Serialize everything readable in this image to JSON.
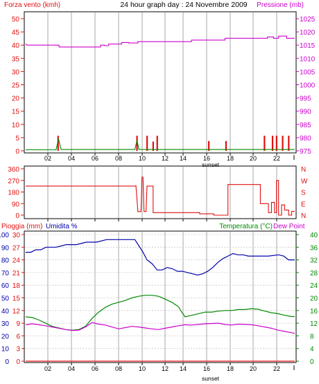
{
  "colors": {
    "red": "#e01010",
    "magenta": "#cc00cc",
    "green": "#008800",
    "blue": "#0000aa",
    "black": "#000000",
    "grid": "#c8c8c8"
  },
  "chart_data": [
    {
      "type": "line",
      "title": "24 hour graph day : 24 Novembre 2009",
      "left_label": "Forza vento (kmh)",
      "right_label": "Pressione (mb)",
      "x_tick_labels": [
        "02",
        "04",
        "06",
        "08",
        "10",
        "12",
        "14",
        "16",
        "18",
        "20",
        "22"
      ],
      "x_marker": "sunset",
      "y_left_ticks": [
        "0",
        "5",
        "10",
        "15",
        "20",
        "25",
        "30",
        "35",
        "40",
        "45",
        "50"
      ],
      "y_right_ticks": [
        "975",
        "980",
        "985",
        "990",
        "995",
        "1000",
        "1005",
        "1010",
        "1015",
        "1020",
        "1025"
      ],
      "ylim_left": [
        0,
        50
      ],
      "series": [
        {
          "axis": "right",
          "color": "magenta",
          "points": [
            [
              0,
              1015.5
            ],
            [
              0.1,
              1015
            ],
            [
              3.3,
              1015
            ],
            [
              3.3,
              1014.3
            ],
            [
              7.4,
              1014.3
            ],
            [
              7.4,
              1015
            ],
            [
              7.8,
              1015
            ],
            [
              7.8,
              1014.8
            ],
            [
              8.2,
              1014.8
            ],
            [
              8.2,
              1015.4
            ],
            [
              9.5,
              1015.4
            ],
            [
              9.5,
              1016
            ],
            [
              10.2,
              1016
            ],
            [
              10.2,
              1015.8
            ],
            [
              11.1,
              1015.8
            ],
            [
              11.1,
              1016.3
            ],
            [
              16.4,
              1016.3
            ],
            [
              16.4,
              1016.9
            ],
            [
              19.7,
              1016.9
            ],
            [
              19.7,
              1017.6
            ],
            [
              23.9,
              1017.6
            ],
            [
              23.9,
              1018.1
            ],
            [
              24.5,
              1018.1
            ],
            [
              24.5,
              1017.6
            ],
            [
              25,
              1017.6
            ],
            [
              25,
              1018.4
            ],
            [
              25.8,
              1018.4
            ],
            [
              25.8,
              1017.6
            ],
            [
              26.6,
              1017.6
            ]
          ]
        },
        {
          "axis": "left",
          "color": "green",
          "points": [
            [
              0,
              0.4
            ],
            [
              3,
              0.4
            ],
            [
              3.25,
              4.5
            ],
            [
              3.5,
              0.5
            ],
            [
              10.8,
              0.5
            ],
            [
              11,
              4
            ],
            [
              11.2,
              0.5
            ],
            [
              26.6,
              0.5
            ]
          ]
        }
      ],
      "bars": {
        "color": "red",
        "values": [
          [
            3.2,
            5.7
          ],
          [
            11.0,
            5.7
          ],
          [
            12.0,
            5.7
          ],
          [
            12.6,
            3.5
          ],
          [
            13.0,
            5.7
          ],
          [
            18.1,
            3.7
          ],
          [
            19.8,
            3.7
          ],
          [
            23.6,
            5.7
          ],
          [
            24.4,
            5.7
          ],
          [
            24.8,
            5.7
          ],
          [
            25.4,
            5.7
          ],
          [
            26.0,
            5.7
          ]
        ]
      }
    },
    {
      "type": "line",
      "y_left_ticks": [
        "360",
        "270",
        "180",
        "90",
        "0"
      ],
      "y_right_ticks": [
        "N",
        "W",
        "S",
        "E",
        "N"
      ],
      "ylim_left": [
        0,
        360
      ],
      "series": [
        {
          "color": "red",
          "points": [
            [
              0,
              226
            ],
            [
              10.8,
              226
            ],
            [
              10.9,
              229
            ],
            [
              11.1,
              28
            ],
            [
              11.4,
              28
            ],
            [
              11.5,
              295
            ],
            [
              11.6,
              295
            ],
            [
              11.7,
              28
            ],
            [
              11.9,
              28
            ],
            [
              12.0,
              226
            ],
            [
              12.6,
              226
            ],
            [
              12.6,
              20
            ],
            [
              17.2,
              20
            ],
            [
              17.2,
              10
            ],
            [
              18.6,
              10
            ],
            [
              18.6,
              0
            ],
            [
              20.0,
              0
            ],
            [
              20.0,
              238
            ],
            [
              23.2,
              238
            ],
            [
              23.2,
              90
            ],
            [
              24.0,
              90
            ],
            [
              24.0,
              20
            ],
            [
              24.3,
              20
            ],
            [
              24.3,
              100
            ],
            [
              24.6,
              100
            ],
            [
              24.6,
              20
            ],
            [
              24.8,
              20
            ],
            [
              24.8,
              270
            ],
            [
              25.0,
              270
            ],
            [
              25.0,
              0
            ],
            [
              25.3,
              0
            ],
            [
              25.3,
              80
            ],
            [
              25.6,
              80
            ],
            [
              25.6,
              40
            ],
            [
              26.0,
              40
            ],
            [
              26.0,
              0
            ],
            [
              26.3,
              0
            ],
            [
              26.3,
              30
            ],
            [
              26.6,
              30
            ]
          ]
        }
      ]
    },
    {
      "type": "line",
      "left_labels": [
        "Pioggia (mm)",
        "Umidita %"
      ],
      "right_labels": [
        "Temperatura (°C)",
        "Dew Point"
      ],
      "x_tick_labels": [
        "02",
        "04",
        "06",
        "08",
        "10",
        "12",
        "14",
        "16",
        "18",
        "20",
        "22"
      ],
      "x_marker": "sunset",
      "y_humidity_ticks": [
        "0",
        "10",
        "20",
        "30",
        "40",
        "50",
        "60",
        "70",
        "80",
        "90",
        "100"
      ],
      "y_rain_ticks": [
        "0",
        "3",
        "6",
        "9",
        "12",
        "15",
        "18",
        "21",
        "24",
        "27",
        "30"
      ],
      "y_temp_ticks": [
        "0",
        "4",
        "8",
        "12",
        "16",
        "20",
        "24",
        "28",
        "32",
        "36",
        "40"
      ],
      "ylim_humidity": [
        0,
        100
      ],
      "series": [
        {
          "name": "Umidita %",
          "color": "blue",
          "points": [
            [
              0,
              86
            ],
            [
              0.5,
              86
            ],
            [
              1,
              88
            ],
            [
              1.5,
              88
            ],
            [
              2,
              90
            ],
            [
              3,
              90
            ],
            [
              3.5,
              91
            ],
            [
              4,
              92
            ],
            [
              5,
              92
            ],
            [
              6,
              94
            ],
            [
              7,
              94
            ],
            [
              8,
              96
            ],
            [
              10,
              96
            ],
            [
              10.8,
              96
            ],
            [
              11.2,
              91
            ],
            [
              11.6,
              86
            ],
            [
              12,
              80
            ],
            [
              12.5,
              77
            ],
            [
              13,
              72
            ],
            [
              13.5,
              72
            ],
            [
              14,
              74
            ],
            [
              14.5,
              73
            ],
            [
              15,
              71
            ],
            [
              15.5,
              71
            ],
            [
              16,
              70
            ],
            [
              16.5,
              69
            ],
            [
              17,
              68
            ],
            [
              17.5,
              69
            ],
            [
              18,
              71
            ],
            [
              18.5,
              74
            ],
            [
              19,
              78
            ],
            [
              19.5,
              81
            ],
            [
              20,
              83
            ],
            [
              20.5,
              85
            ],
            [
              21,
              84
            ],
            [
              21.5,
              84
            ],
            [
              22,
              83
            ],
            [
              23,
              83
            ],
            [
              24,
              83
            ],
            [
              25,
              84
            ],
            [
              25.5,
              83
            ],
            [
              26,
              80
            ],
            [
              26.6,
              80
            ]
          ]
        },
        {
          "name": "Temperatura (°C)",
          "color": "green",
          "points": [
            [
              0,
              14
            ],
            [
              1,
              13.8
            ],
            [
              2,
              13
            ],
            [
              3,
              12
            ],
            [
              4,
              11
            ],
            [
              5,
              10.5
            ],
            [
              6,
              10
            ],
            [
              7,
              9.8
            ],
            [
              8,
              10
            ],
            [
              9,
              11
            ],
            [
              10,
              13.5
            ],
            [
              11,
              15.5
            ],
            [
              12,
              17
            ],
            [
              13,
              18
            ],
            [
              14,
              18.6
            ],
            [
              15,
              19.2
            ],
            [
              16,
              20
            ],
            [
              17,
              20.5
            ],
            [
              18,
              20.8
            ],
            [
              19,
              20.8
            ],
            [
              20,
              20.5
            ],
            [
              21,
              19.6
            ],
            [
              22,
              18.6
            ],
            [
              23,
              17.2
            ],
            [
              23.5,
              15.5
            ],
            [
              24,
              14
            ],
            [
              25,
              14.5
            ],
            [
              26,
              15
            ],
            [
              27,
              15.5
            ],
            [
              28,
              15.5
            ],
            [
              29,
              15.8
            ],
            [
              30,
              16
            ],
            [
              31,
              16
            ],
            [
              32,
              16.3
            ],
            [
              33,
              16.3
            ],
            [
              34,
              16.6
            ],
            [
              35,
              16.4
            ],
            [
              36,
              15.8
            ],
            [
              37,
              15.3
            ],
            [
              38,
              15
            ],
            [
              39,
              14.5
            ],
            [
              40,
              14.1
            ],
            [
              40.5,
              14.1
            ]
          ]
        },
        {
          "name": "Dew Point",
          "color": "magenta",
          "points": [
            [
              0,
              11.5
            ],
            [
              1,
              11.8
            ],
            [
              2,
              11.5
            ],
            [
              3,
              11.2
            ],
            [
              4,
              10.8
            ],
            [
              5,
              10.4
            ],
            [
              6,
              10
            ],
            [
              7,
              9.7
            ],
            [
              8,
              9.8
            ],
            [
              9,
              10.8
            ],
            [
              10,
              12.2
            ],
            [
              11,
              11.7
            ],
            [
              12,
              11.4
            ],
            [
              13,
              10.8
            ],
            [
              14,
              10.2
            ],
            [
              15,
              10.6
            ],
            [
              16,
              11
            ],
            [
              17,
              10.8
            ],
            [
              18,
              10.5
            ],
            [
              19,
              10.2
            ],
            [
              20,
              10
            ],
            [
              21,
              10.4
            ],
            [
              22,
              10.8
            ],
            [
              23,
              11.2
            ],
            [
              24,
              11.5
            ],
            [
              25,
              11.4
            ],
            [
              26,
              11.6
            ],
            [
              27,
              11.8
            ],
            [
              28,
              11.9
            ],
            [
              29,
              12
            ],
            [
              30,
              11.6
            ],
            [
              31,
              11.4
            ],
            [
              32,
              11.7
            ],
            [
              33,
              11.6
            ],
            [
              34,
              11.5
            ],
            [
              35,
              11.2
            ],
            [
              36,
              10.8
            ],
            [
              37,
              10.4
            ],
            [
              38,
              9.8
            ],
            [
              39,
              9.4
            ],
            [
              40,
              9
            ],
            [
              40.5,
              8.8
            ]
          ]
        },
        {
          "name": "Pioggia (mm)",
          "color": "red",
          "points": [
            [
              0,
              0
            ],
            [
              40.5,
              0
            ]
          ]
        }
      ]
    }
  ]
}
